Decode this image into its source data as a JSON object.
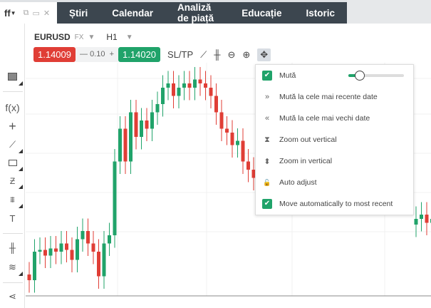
{
  "tab": {
    "title": "ff",
    "icons": [
      "popout-icon",
      "maximize-icon",
      "close-icon"
    ]
  },
  "nav": [
    "Știri",
    "Calendar",
    "Analiză de piață",
    "Educație",
    "Istoric"
  ],
  "symbol": {
    "name": "EURUSD",
    "type": "FX",
    "timeframe": "H1"
  },
  "prices": {
    "sell": "1.14009",
    "spread": "0.10",
    "buy": "1.14020",
    "sltp": "SL/TP"
  },
  "toolbar_icons": [
    "line-chart-icon",
    "candles-icon",
    "zoom-out-icon",
    "zoom-in-icon",
    "move-icon"
  ],
  "left_toolbar": [
    "window-icon",
    "fx-icon",
    "crosshair-icon",
    "trendline-icon",
    "rectangle-icon",
    "fibonacci-icon",
    "fan-icon",
    "text-icon",
    "chart-type-icon",
    "layers-icon",
    "share-icon"
  ],
  "left_labels": {
    "fx": "f(x)",
    "text": "T"
  },
  "menu": {
    "items": [
      {
        "label": "Mută",
        "type": "checkbox",
        "checked": true,
        "slider": 0.15
      },
      {
        "label": "Mută la cele mai recente date",
        "icon": "»"
      },
      {
        "label": "Mută la cele mai vechi date",
        "icon": "«"
      },
      {
        "label": "Zoom out vertical",
        "icon": "⧗"
      },
      {
        "label": "Zoom in vertical",
        "icon": "⬍"
      },
      {
        "label": "Auto adjust",
        "icon": "🔓"
      },
      {
        "label": "Move automatically to most recent",
        "type": "checkbox",
        "checked": true
      }
    ]
  },
  "colors": {
    "up": "#20a36a",
    "down": "#e03e36",
    "nav": "#3c464f"
  },
  "chart_data": {
    "type": "candlestick",
    "first_open": 1.1383,
    "closes": [
      1.13814,
      1.13894,
      1.13899,
      1.13883,
      1.13903,
      1.13894,
      1.13917,
      1.13899,
      1.13871,
      1.13929,
      1.13952,
      1.13917,
      1.13894,
      1.13825,
      1.13917,
      1.1394,
      1.14147,
      1.14239,
      1.14147,
      1.14285,
      1.14216,
      1.14262,
      1.14239,
      1.14285,
      1.14308,
      1.14354,
      1.14366,
      1.14331,
      1.14354,
      1.14366,
      1.14354,
      1.14377,
      1.14366,
      1.14354,
      1.14331,
      1.14285,
      1.14239,
      1.14228,
      1.14193,
      1.14205,
      1.14147,
      1.14124,
      1.14101,
      1.1409
    ],
    "right_open": 1.1397,
    "right_closes": [
      1.13986,
      1.13998,
      1.13975,
      1.13986
    ],
    "ylim": [
      1.138,
      1.1444
    ]
  }
}
